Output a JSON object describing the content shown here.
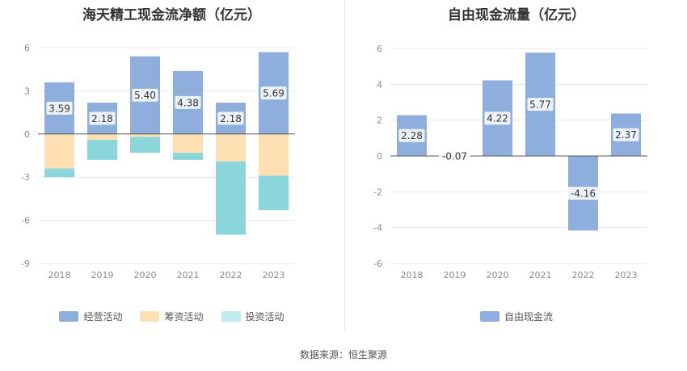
{
  "source_label": "数据来源：恒生聚源",
  "colors": {
    "operating": "#8eaedd",
    "financing": "#ffe0b2",
    "investing": "#8ad6da",
    "free_cash_flow": "#8eaedd",
    "grid": "#e6e8f0",
    "axis_text": "#8a8a8a"
  },
  "chart_data": [
    {
      "type": "bar",
      "stacked": true,
      "title": "海天精工现金流净额（亿元）",
      "categories": [
        "2018",
        "2019",
        "2020",
        "2021",
        "2022",
        "2023"
      ],
      "ylim": [
        -9,
        6
      ],
      "yticks": [
        6,
        3,
        0,
        -3,
        -6,
        -9
      ],
      "series": [
        {
          "name": "经营活动",
          "values": [
            3.59,
            2.18,
            5.4,
            4.38,
            2.18,
            5.69
          ],
          "labels": [
            "3.59",
            "2.18",
            "5.40",
            "4.38",
            "2.18",
            "5.69"
          ]
        },
        {
          "name": "筹资活动",
          "values": [
            -2.4,
            -0.4,
            -0.2,
            -1.3,
            -1.9,
            -2.9
          ]
        },
        {
          "name": "投资活动",
          "values": [
            -0.6,
            -1.4,
            -1.1,
            -0.5,
            -5.1,
            -2.4
          ]
        }
      ],
      "legend_position": "bottom"
    },
    {
      "type": "bar",
      "title": "自由现金流量（亿元）",
      "categories": [
        "2018",
        "2019",
        "2020",
        "2021",
        "2022",
        "2023"
      ],
      "ylim": [
        -6,
        6
      ],
      "yticks": [
        6,
        4,
        2,
        0,
        -2,
        -4,
        -6
      ],
      "series": [
        {
          "name": "自由现金流",
          "values": [
            2.28,
            -0.07,
            4.22,
            5.77,
            -4.16,
            2.37
          ],
          "labels": [
            "2.28",
            "-0.07",
            "4.22",
            "5.77",
            "-4.16",
            "2.37"
          ]
        }
      ],
      "legend_position": "bottom"
    }
  ]
}
